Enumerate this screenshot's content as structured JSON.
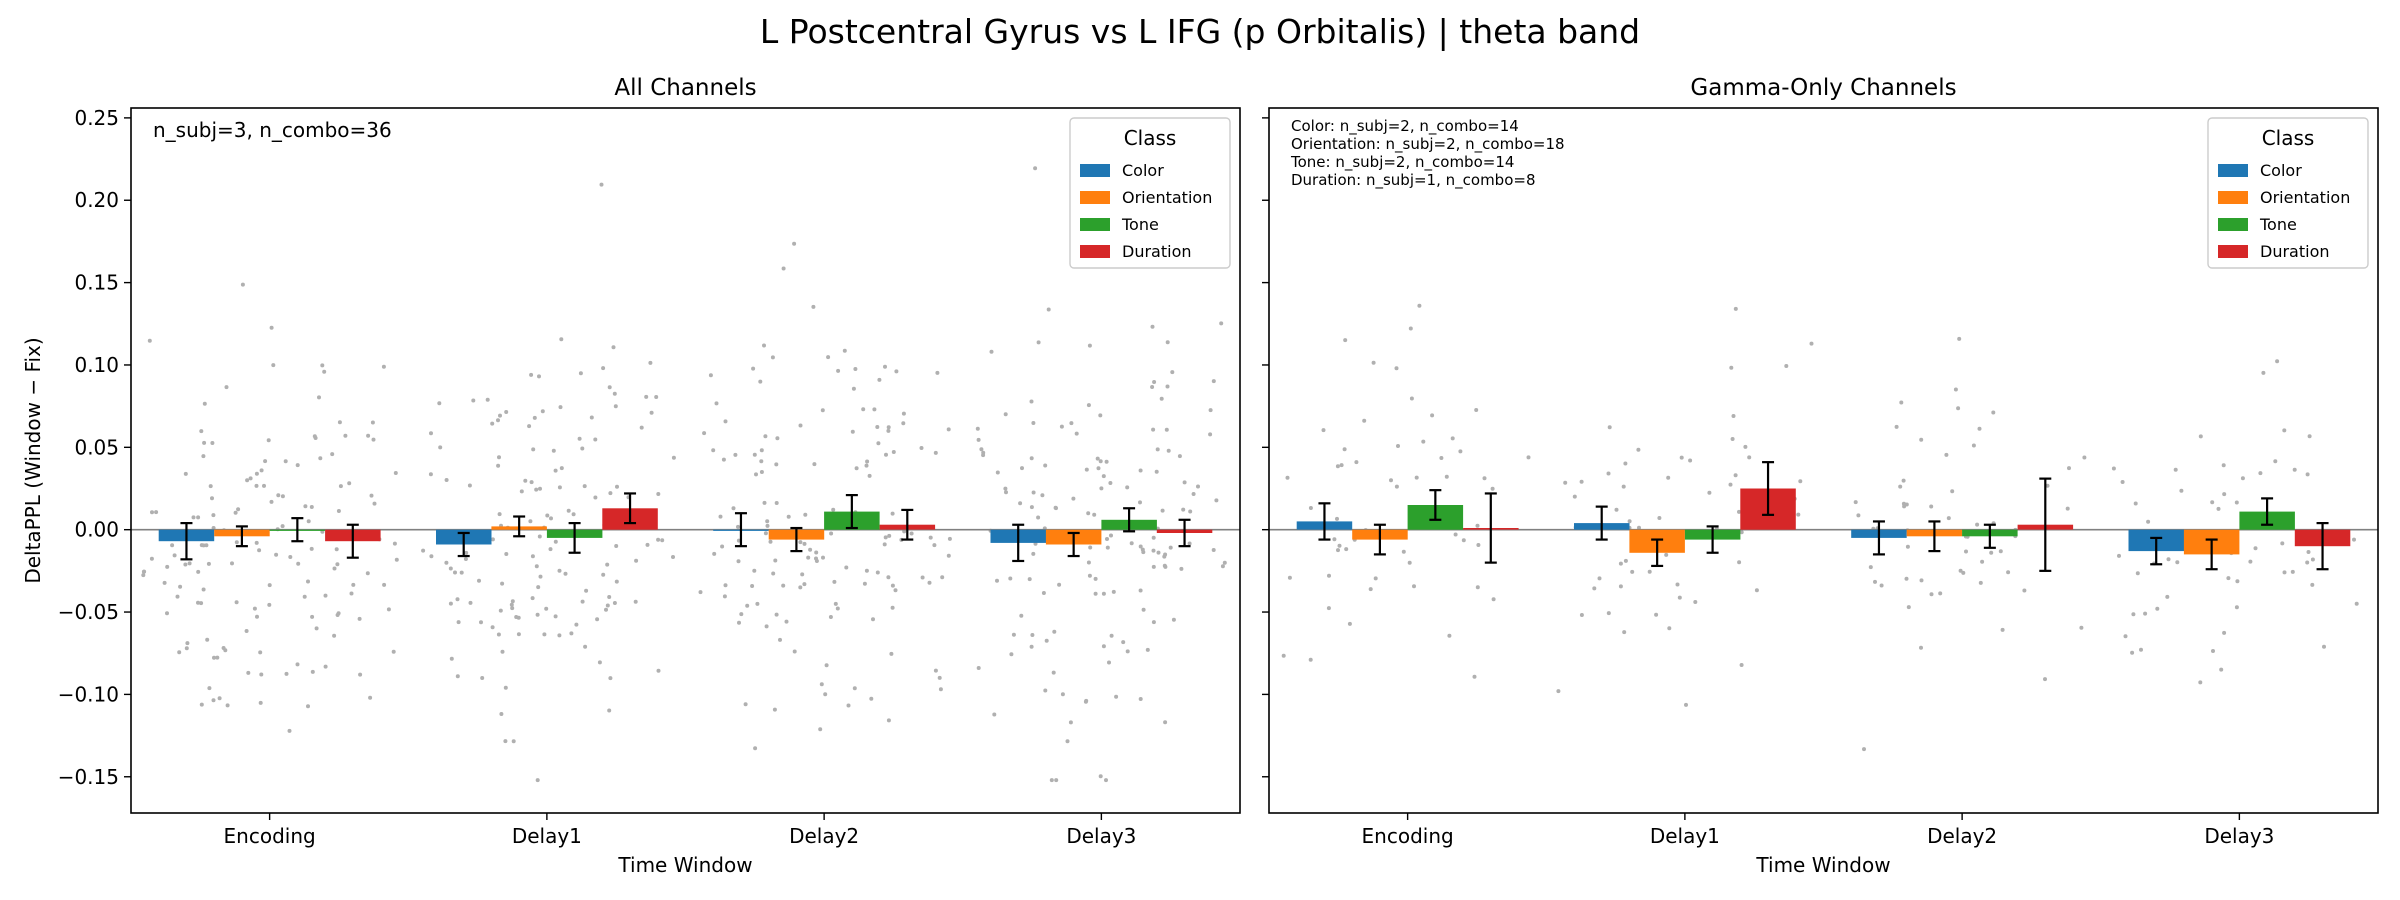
{
  "figure": {
    "suptitle": "L Postcentral Gyrus vs L IFG (p Orbitalis)  |  theta band"
  },
  "chart_data": [
    {
      "type": "bar",
      "title": "All Channels",
      "xlabel": "Time Window",
      "ylabel": "DeltaPPL (Window − Fix)",
      "categories": [
        "Encoding",
        "Delay1",
        "Delay2",
        "Delay3"
      ],
      "ylim": [
        -0.172,
        0.256
      ],
      "yticks": [
        -0.15,
        -0.1,
        -0.05,
        0.0,
        0.05,
        0.1,
        0.15,
        0.2,
        0.25
      ],
      "ytick_labels": [
        "−0.15",
        "−0.10",
        "−0.05",
        "0.00",
        "0.05",
        "0.10",
        "0.15",
        "0.20",
        "0.25"
      ],
      "show_ytick_labels": true,
      "annotation": [
        "n_subj=3, n_combo=36"
      ],
      "annotation_size": "large",
      "legend": {
        "title": "Class",
        "position": "top-right"
      },
      "zero_line": true,
      "scatter_points": "individual combo values shown as light gray dots",
      "series": [
        {
          "name": "Color",
          "color": "#1f77b4",
          "values": [
            -0.007,
            -0.009,
            0.0,
            -0.008
          ],
          "errors": [
            0.011,
            0.007,
            0.01,
            0.011
          ]
        },
        {
          "name": "Orientation",
          "color": "#ff7f0e",
          "values": [
            -0.004,
            0.002,
            -0.006,
            -0.009
          ],
          "errors": [
            0.006,
            0.006,
            0.007,
            0.007
          ]
        },
        {
          "name": "Tone",
          "color": "#2ca02c",
          "values": [
            0.0,
            -0.005,
            0.011,
            0.006
          ],
          "errors": [
            0.007,
            0.009,
            0.01,
            0.007
          ]
        },
        {
          "name": "Duration",
          "color": "#d62728",
          "values": [
            -0.007,
            0.013,
            0.003,
            -0.002
          ],
          "errors": [
            0.01,
            0.009,
            0.009,
            0.008
          ]
        }
      ]
    },
    {
      "type": "bar",
      "title": "Gamma-Only Channels",
      "xlabel": "Time Window",
      "ylabel": "",
      "categories": [
        "Encoding",
        "Delay1",
        "Delay2",
        "Delay3"
      ],
      "ylim": [
        -0.172,
        0.256
      ],
      "yticks": [
        -0.15,
        -0.1,
        -0.05,
        0.0,
        0.05,
        0.1,
        0.15,
        0.2,
        0.25
      ],
      "ytick_labels": [],
      "show_ytick_labels": false,
      "annotation": [
        "Color: n_subj=2, n_combo=14",
        "Orientation: n_subj=2, n_combo=18",
        "Tone: n_subj=2, n_combo=14",
        "Duration: n_subj=1, n_combo=8"
      ],
      "annotation_size": "small",
      "legend": {
        "title": "Class",
        "position": "top-right"
      },
      "zero_line": true,
      "scatter_points": "individual combo values shown as light gray dots",
      "series": [
        {
          "name": "Color",
          "color": "#1f77b4",
          "values": [
            0.005,
            0.004,
            -0.005,
            -0.013
          ],
          "errors": [
            0.011,
            0.01,
            0.01,
            0.008
          ]
        },
        {
          "name": "Orientation",
          "color": "#ff7f0e",
          "values": [
            -0.006,
            -0.014,
            -0.004,
            -0.015
          ],
          "errors": [
            0.009,
            0.008,
            0.009,
            0.009
          ]
        },
        {
          "name": "Tone",
          "color": "#2ca02c",
          "values": [
            0.015,
            -0.006,
            -0.004,
            0.011
          ],
          "errors": [
            0.009,
            0.008,
            0.007,
            0.008
          ]
        },
        {
          "name": "Duration",
          "color": "#d62728",
          "values": [
            0.001,
            0.025,
            0.003,
            -0.01
          ],
          "errors": [
            0.021,
            0.016,
            0.028,
            0.014
          ]
        }
      ]
    }
  ]
}
